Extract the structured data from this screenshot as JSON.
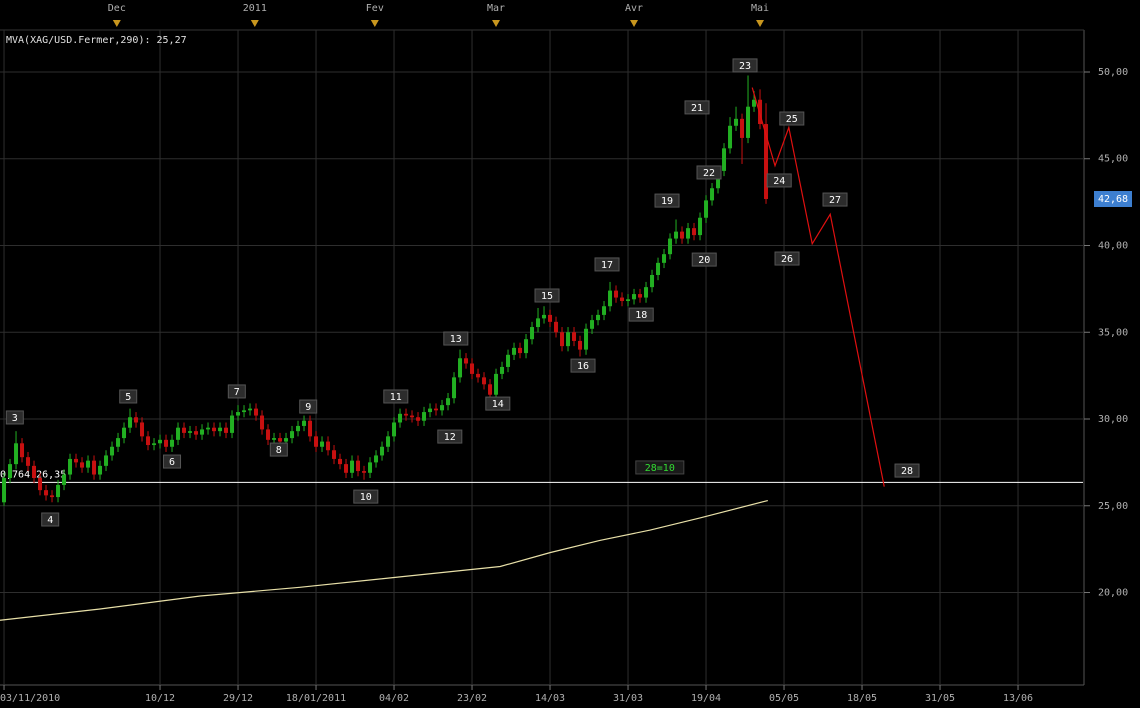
{
  "chart_data": {
    "type": "candlestick",
    "indicator_label": "MVA(XAG/USD.Fermer,290): 25,27",
    "xlim": [
      -0.67,
      179.83
    ],
    "ylim": [
      14.67,
      52.42
    ],
    "yticks": [
      {
        "value": 20,
        "label": "20,00"
      },
      {
        "value": 25,
        "label": "25,00"
      },
      {
        "value": 30,
        "label": "30,00"
      },
      {
        "value": 35,
        "label": "35,00"
      },
      {
        "value": 40,
        "label": "40,00"
      },
      {
        "value": 45,
        "label": "45,00"
      },
      {
        "value": 50,
        "label": "50,00"
      }
    ],
    "xticks": [
      {
        "value": 0,
        "label": "03/11/2010"
      },
      {
        "value": 26,
        "label": "10/12"
      },
      {
        "value": 39,
        "label": "29/12"
      },
      {
        "value": 52,
        "label": "18/01/2011"
      },
      {
        "value": 65,
        "label": "04/02"
      },
      {
        "value": 78,
        "label": "23/02"
      },
      {
        "value": 91,
        "label": "14/03"
      },
      {
        "value": 104,
        "label": "31/03"
      },
      {
        "value": 117,
        "label": "19/04"
      },
      {
        "value": 130,
        "label": "05/05"
      },
      {
        "value": 143,
        "label": "18/05"
      },
      {
        "value": 156,
        "label": "31/05"
      },
      {
        "value": 169,
        "label": "13/06"
      }
    ],
    "month_markers": [
      {
        "value": 18.8,
        "label": "Dec"
      },
      {
        "value": 41.8,
        "label": "2011"
      },
      {
        "value": 61.8,
        "label": "Fev"
      },
      {
        "value": 82,
        "label": "Mar"
      },
      {
        "value": 105,
        "label": "Avr"
      },
      {
        "value": 126,
        "label": "Mai"
      }
    ],
    "up_color": "#22b022",
    "down_color": "#c81010",
    "candles": {
      "open": [
        25.2,
        26.6,
        27.4,
        28.6,
        27.8,
        27.3,
        26.6,
        25.9,
        25.6,
        25.5,
        26.2,
        26.8,
        27.7,
        27.5,
        27.2,
        27.6,
        26.8,
        27.3,
        27.9,
        28.4,
        28.9,
        29.5,
        30.1,
        29.8,
        29.0,
        28.5,
        28.6,
        28.8,
        28.4,
        28.8,
        29.5,
        29.2,
        29.3,
        29.1,
        29.4,
        29.5,
        29.3,
        29.5,
        29.2,
        30.2,
        30.4,
        30.5,
        30.6,
        30.2,
        29.4,
        28.8,
        28.9,
        28.7,
        28.9,
        29.3,
        29.6,
        29.9,
        29.0,
        28.4,
        28.7,
        28.2,
        27.7,
        27.4,
        26.9,
        27.6,
        27.0,
        26.9,
        27.5,
        27.9,
        28.4,
        29.0,
        29.8,
        30.3,
        30.2,
        30.1,
        29.9,
        30.4,
        30.6,
        30.5,
        30.8,
        31.2,
        32.4,
        33.5,
        33.2,
        32.6,
        32.4,
        32.0,
        31.4,
        32.6,
        33.0,
        33.7,
        34.1,
        33.8,
        34.6,
        35.3,
        35.8,
        36.0,
        35.6,
        35.0,
        34.2,
        35.0,
        34.5,
        34.0,
        35.2,
        35.7,
        36.0,
        36.5,
        37.4,
        37.0,
        36.8,
        36.9,
        37.2,
        37.0,
        37.6,
        38.3,
        39.0,
        39.5,
        40.4,
        40.8,
        40.4,
        41.0,
        40.6,
        41.6,
        42.6,
        43.3,
        44.3,
        45.6,
        46.9,
        47.3,
        46.2,
        48.0,
        48.4,
        47.0
      ],
      "high": [
        26.9,
        27.7,
        29.3,
        28.9,
        28.1,
        27.6,
        26.9,
        26.2,
        25.9,
        26.5,
        27.1,
        28.0,
        28.0,
        27.8,
        27.9,
        27.9,
        27.6,
        28.2,
        28.7,
        29.2,
        29.8,
        30.6,
        30.4,
        30.1,
        29.3,
        28.9,
        29.1,
        29.1,
        29.1,
        29.8,
        29.8,
        29.6,
        29.6,
        29.7,
        29.8,
        29.8,
        29.8,
        29.8,
        30.5,
        30.8,
        30.8,
        30.9,
        30.9,
        30.5,
        29.7,
        29.2,
        29.2,
        29.2,
        29.6,
        29.9,
        30.2,
        30.2,
        29.3,
        29.0,
        29.0,
        28.5,
        28.0,
        27.7,
        27.9,
        27.9,
        27.3,
        27.8,
        28.2,
        28.7,
        29.3,
        30.1,
        30.6,
        30.6,
        30.5,
        30.4,
        30.7,
        30.9,
        30.9,
        31.1,
        31.5,
        32.7,
        34.0,
        33.8,
        33.5,
        32.9,
        32.7,
        32.3,
        32.9,
        33.3,
        34.0,
        34.4,
        34.4,
        34.9,
        35.6,
        36.4,
        36.5,
        36.3,
        35.9,
        35.3,
        35.3,
        35.3,
        34.8,
        35.5,
        36.0,
        36.3,
        36.8,
        37.9,
        37.7,
        37.3,
        37.2,
        37.5,
        37.5,
        37.9,
        38.6,
        39.3,
        39.8,
        40.7,
        41.5,
        41.1,
        41.3,
        41.3,
        41.9,
        42.9,
        43.6,
        44.6,
        45.9,
        47.4,
        48.0,
        47.6,
        49.8,
        48.9,
        49.0,
        48.2
      ],
      "low": [
        25.0,
        26.3,
        27.1,
        27.5,
        27.0,
        26.3,
        25.6,
        25.3,
        25.2,
        25.2,
        25.9,
        26.5,
        27.2,
        26.9,
        26.9,
        26.5,
        26.5,
        27.0,
        27.6,
        28.1,
        28.6,
        29.2,
        29.5,
        28.7,
        28.2,
        28.2,
        28.3,
        28.1,
        28.1,
        28.5,
        28.9,
        28.9,
        28.8,
        28.8,
        29.1,
        29.0,
        29.0,
        28.9,
        28.9,
        29.9,
        30.1,
        30.2,
        29.9,
        29.1,
        28.5,
        28.3,
        28.4,
        28.4,
        28.6,
        29.0,
        29.3,
        28.7,
        28.1,
        28.1,
        27.9,
        27.4,
        27.1,
        26.6,
        26.6,
        26.7,
        26.5,
        26.6,
        27.2,
        27.6,
        28.1,
        28.7,
        29.5,
        29.9,
        29.8,
        29.6,
        29.6,
        30.1,
        30.2,
        30.2,
        30.5,
        30.9,
        32.1,
        32.9,
        32.3,
        32.1,
        31.7,
        31.1,
        31.1,
        32.3,
        32.7,
        33.4,
        33.5,
        33.5,
        34.3,
        35.0,
        35.5,
        35.3,
        34.7,
        33.9,
        33.9,
        34.2,
        33.6,
        33.7,
        34.9,
        35.4,
        35.7,
        36.2,
        36.7,
        36.5,
        36.5,
        36.6,
        36.7,
        36.7,
        37.3,
        38.0,
        38.7,
        39.2,
        40.1,
        40.1,
        40.1,
        40.3,
        40.3,
        41.3,
        42.3,
        43.0,
        44.0,
        45.3,
        46.6,
        44.7,
        45.9,
        47.7,
        46.7,
        42.4
      ],
      "close": [
        26.6,
        27.4,
        28.6,
        27.8,
        27.3,
        26.6,
        25.9,
        25.6,
        25.5,
        26.2,
        26.8,
        27.7,
        27.5,
        27.2,
        27.6,
        26.8,
        27.3,
        27.9,
        28.4,
        28.9,
        29.5,
        30.1,
        29.8,
        29.0,
        28.5,
        28.6,
        28.8,
        28.4,
        28.8,
        29.5,
        29.2,
        29.3,
        29.1,
        29.4,
        29.5,
        29.3,
        29.5,
        29.2,
        30.2,
        30.4,
        30.5,
        30.6,
        30.2,
        29.4,
        28.8,
        28.9,
        28.7,
        28.9,
        29.3,
        29.6,
        29.9,
        29.0,
        28.4,
        28.7,
        28.2,
        27.7,
        27.4,
        26.9,
        27.6,
        27.0,
        26.9,
        27.5,
        27.9,
        28.4,
        29.0,
        29.8,
        30.3,
        30.2,
        30.1,
        29.9,
        30.4,
        30.6,
        30.5,
        30.8,
        31.2,
        32.4,
        33.5,
        33.2,
        32.6,
        32.4,
        32.0,
        31.4,
        32.6,
        33.0,
        33.7,
        34.1,
        33.8,
        34.6,
        35.3,
        35.8,
        36.0,
        35.6,
        35.0,
        34.2,
        35.0,
        34.5,
        34.0,
        35.2,
        35.7,
        36.0,
        36.5,
        37.4,
        37.0,
        36.8,
        36.9,
        37.2,
        37.0,
        37.6,
        38.3,
        39.0,
        39.5,
        40.4,
        40.8,
        40.4,
        41.0,
        40.6,
        41.6,
        42.6,
        43.3,
        44.3,
        45.6,
        46.9,
        47.3,
        46.2,
        48.0,
        48.4,
        47.0,
        42.68
      ]
    },
    "moving_average": {
      "color": "#e8e0a8",
      "x": [
        -0.67,
        16,
        32.7,
        49.3,
        66,
        82.7,
        91,
        99.3,
        107.7,
        116,
        127.3
      ],
      "values": [
        18.4,
        19.05,
        19.8,
        20.3,
        20.9,
        21.5,
        22.3,
        23.0,
        23.6,
        24.3,
        25.3
      ]
    },
    "projection": {
      "color": "#e01010",
      "x": [
        124.7,
        128.5,
        130.8,
        134.7,
        137.7,
        146.7
      ],
      "values": [
        49.1,
        44.6,
        46.8,
        40.1,
        41.8,
        26.1
      ]
    },
    "level": {
      "value": 26.35,
      "label": "0,764 26,35",
      "color": "#ffffff"
    },
    "last_price": {
      "value": 42.68,
      "label": "42,68"
    },
    "wave_labels": [
      {
        "text": "3",
        "x": 1.8,
        "y": 30.06
      },
      {
        "text": "4",
        "x": 7.7,
        "y": 24.18
      },
      {
        "text": "5",
        "x": 20.7,
        "y": 31.27
      },
      {
        "text": "6",
        "x": 28,
        "y": 27.52
      },
      {
        "text": "7",
        "x": 38.8,
        "y": 31.56
      },
      {
        "text": "8",
        "x": 45.8,
        "y": 28.21
      },
      {
        "text": "9",
        "x": 50.7,
        "y": 30.69
      },
      {
        "text": "10",
        "x": 60.3,
        "y": 25.5
      },
      {
        "text": "11",
        "x": 65.3,
        "y": 31.27
      },
      {
        "text": "12",
        "x": 74.3,
        "y": 28.96
      },
      {
        "text": "13",
        "x": 75.3,
        "y": 34.61
      },
      {
        "text": "14",
        "x": 82.3,
        "y": 30.86
      },
      {
        "text": "15",
        "x": 90.5,
        "y": 37.09
      },
      {
        "text": "16",
        "x": 96.5,
        "y": 33.05
      },
      {
        "text": "17",
        "x": 100.5,
        "y": 38.88
      },
      {
        "text": "18",
        "x": 106.2,
        "y": 35.99
      },
      {
        "text": "19",
        "x": 110.5,
        "y": 42.56
      },
      {
        "text": "20",
        "x": 116.7,
        "y": 39.16
      },
      {
        "text": "21",
        "x": 115.5,
        "y": 47.93
      },
      {
        "text": "22",
        "x": 117.5,
        "y": 44.18
      },
      {
        "text": "23",
        "x": 123.5,
        "y": 50.35
      },
      {
        "text": "24",
        "x": 129.2,
        "y": 43.72
      },
      {
        "text": "25",
        "x": 131.3,
        "y": 47.29
      },
      {
        "text": "26",
        "x": 130.5,
        "y": 39.22
      },
      {
        "text": "27",
        "x": 138.5,
        "y": 42.62
      },
      {
        "text": "28",
        "x": 150.5,
        "y": 27.0
      }
    ],
    "note": {
      "text": "28=10",
      "x": 109.3,
      "y": 27.18,
      "color": "#33dd33"
    }
  }
}
